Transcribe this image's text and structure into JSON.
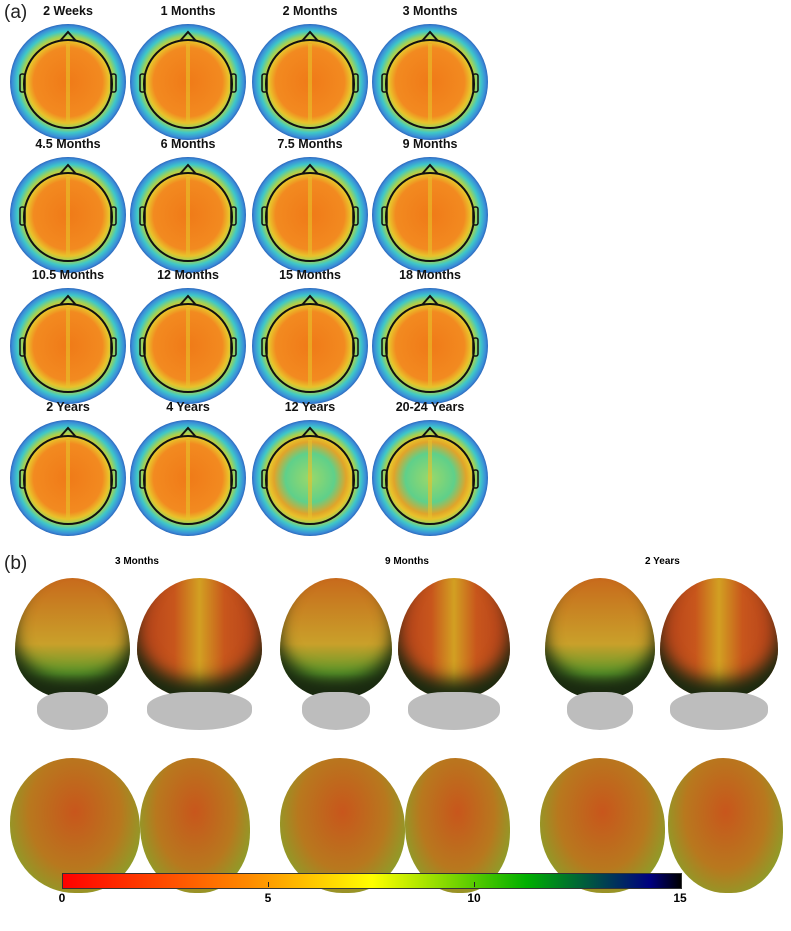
{
  "panel_a": {
    "label": "(a)",
    "maps": [
      {
        "title": "2 Weeks",
        "style": "warm"
      },
      {
        "title": "1 Months",
        "style": "warm"
      },
      {
        "title": "2 Months",
        "style": "warm"
      },
      {
        "title": "3 Months",
        "style": "warm"
      },
      {
        "title": "4.5 Months",
        "style": "warm"
      },
      {
        "title": "6 Months",
        "style": "warm"
      },
      {
        "title": "7.5 Months",
        "style": "warm"
      },
      {
        "title": "9 Months",
        "style": "warm"
      },
      {
        "title": "10.5 Months",
        "style": "warm"
      },
      {
        "title": "12 Months",
        "style": "warm"
      },
      {
        "title": "15 Months",
        "style": "warm"
      },
      {
        "title": "18 Months",
        "style": "warm"
      },
      {
        "title": "2 Years",
        "style": "warm"
      },
      {
        "title": "4 Years",
        "style": "warm"
      },
      {
        "title": "12 Years",
        "style": "cool"
      },
      {
        "title": "20-24 Years",
        "style": "cool"
      }
    ]
  },
  "panel_b": {
    "label": "(b)",
    "groups": [
      {
        "title": "3 Months"
      },
      {
        "title": "9 Months"
      },
      {
        "title": "2 Years"
      }
    ]
  },
  "chart_data": {
    "type": "heatmap",
    "colorbar": {
      "range": [
        0,
        15
      ],
      "ticks": [
        "0",
        "5",
        "10",
        "15"
      ],
      "colors": [
        "#ff0000",
        "#ff8a00",
        "#ffff00",
        "#00b000",
        "#000080",
        "#000000"
      ]
    }
  }
}
